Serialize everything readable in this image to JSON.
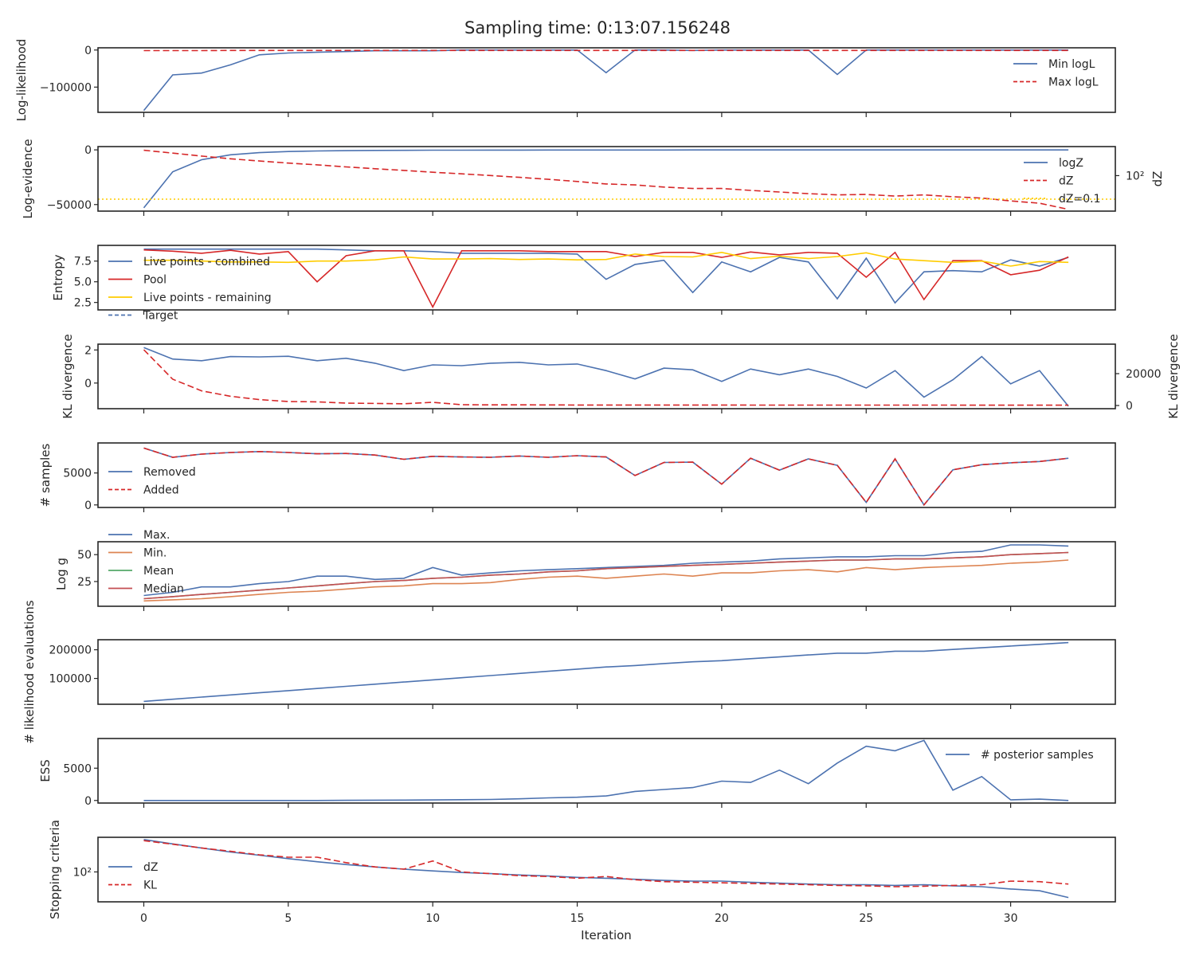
{
  "figure": {
    "title": "Sampling time: 0:13:07.156248",
    "xlabel": "Iteration"
  },
  "chart_data": [
    {
      "type": "line",
      "ylabel": "Log-likelihood",
      "x_ticks": [
        0,
        5,
        10,
        15,
        20,
        25,
        30
      ],
      "y_ticks": [
        0,
        -100000
      ],
      "y_tick_labels": [
        "0",
        "−100000"
      ],
      "ylim": [
        -168000,
        6000
      ],
      "legend_position": "upper right",
      "legend": [
        "Min logL",
        "Max logL"
      ],
      "series": [
        {
          "name": "Min logL",
          "color": "#4c72b0",
          "dash": "solid",
          "values": [
            -163000,
            -67000,
            -62000,
            -40000,
            -13000,
            -8000,
            -6000,
            -4000,
            -2000,
            -2000,
            -2000,
            0,
            0,
            0,
            0,
            0,
            -61000,
            0,
            0,
            -1000,
            0,
            0,
            0,
            0,
            -66000,
            0,
            0,
            0,
            0,
            0,
            0,
            0,
            0
          ]
        },
        {
          "name": "Max logL",
          "color": "#d62728",
          "dash": "dashed",
          "values": [
            -1500,
            -1500,
            -1500,
            -1000,
            -1000,
            -1000,
            -1000,
            -1000,
            -1000,
            -1000,
            -1000,
            -1000,
            -1000,
            -1000,
            -1000,
            -1000,
            -1000,
            -1000,
            -1000,
            -1000,
            -1000,
            -1000,
            -1000,
            -1000,
            -1000,
            -1000,
            -1000,
            -1000,
            -1000,
            -1000,
            -1000,
            -1000,
            -1000
          ]
        }
      ]
    },
    {
      "type": "line",
      "ylabel": "Log-evidence",
      "y2label": "dZ",
      "y2_scale": "log",
      "y_ticks": [
        0,
        -50000
      ],
      "y_tick_labels": [
        "0",
        "−50000"
      ],
      "y2_tick_labels": [
        "10²"
      ],
      "ylim": [
        -56000,
        3000
      ],
      "legend_position": "lower right",
      "legend": [
        "logZ",
        "dZ",
        "dZ=0.1"
      ],
      "series": [
        {
          "name": "logZ",
          "color": "#4c72b0",
          "dash": "solid",
          "values": [
            -53000,
            -20000,
            -9000,
            -4500,
            -2500,
            -1500,
            -1000,
            -700,
            -500,
            -400,
            -300,
            -250,
            -200,
            -170,
            -150,
            -130,
            -120,
            -110,
            -100,
            -90,
            -80,
            -75,
            -70,
            -65,
            -60,
            -55,
            -50,
            -48,
            -46,
            -45,
            -44,
            -43,
            -42
          ]
        },
        {
          "name": "dZ",
          "color": "#d62728",
          "dash": "dashed",
          "axis": "right",
          "values": [
            170000,
            73000,
            31000,
            14000,
            7300,
            4000,
            2350,
            1300,
            750,
            460,
            270,
            170,
            103,
            61,
            34,
            18,
            8.6,
            6.6,
            3.5,
            2.3,
            2.3,
            1.3,
            0.81,
            0.5,
            0.35,
            0.4,
            0.25,
            0.35,
            0.2,
            0.14,
            0.06,
            0.03,
            0.005
          ]
        },
        {
          "name": "dZ=0.1",
          "color": "#ffcc00",
          "dash": "dotted",
          "axis": "right",
          "values": [
            0.1
          ]
        }
      ]
    },
    {
      "type": "line",
      "ylabel": "Entropy",
      "y_ticks": [
        2.5,
        5.0,
        7.5
      ],
      "y_tick_labels": [
        "2.5",
        "5.0",
        "7.5"
      ],
      "ylim": [
        1.6,
        9.4
      ],
      "legend_position": "left",
      "legend": [
        "Live points - combined",
        "Pool",
        "Live points - remaining",
        "Target"
      ],
      "series": [
        {
          "name": "Live points - combined",
          "color": "#4c72b0",
          "dash": "solid",
          "values": [
            8.95,
            8.95,
            8.95,
            8.95,
            8.95,
            8.95,
            8.95,
            8.85,
            8.75,
            8.75,
            8.65,
            8.45,
            8.45,
            8.45,
            8.45,
            8.35,
            5.3,
            7.1,
            7.6,
            3.7,
            7.4,
            6.2,
            7.95,
            7.4,
            2.95,
            7.85,
            2.45,
            6.2,
            6.35,
            6.2,
            7.65,
            6.9,
            7.95
          ]
        },
        {
          "name": "Pool",
          "color": "#d62728",
          "dash": "solid",
          "values": [
            8.85,
            8.7,
            8.45,
            8.8,
            8.35,
            8.65,
            5.0,
            8.15,
            8.75,
            8.75,
            1.95,
            8.75,
            8.75,
            8.75,
            8.65,
            8.65,
            8.65,
            8.05,
            8.55,
            8.55,
            7.95,
            8.6,
            8.25,
            8.55,
            8.45,
            5.55,
            8.55,
            2.85,
            7.55,
            7.55,
            5.85,
            6.4,
            8.0
          ]
        },
        {
          "name": "Live points - remaining",
          "color": "#ffcc00",
          "dash": "solid",
          "values": [
            7.6,
            7.6,
            7.5,
            7.4,
            7.4,
            7.35,
            7.5,
            7.5,
            7.65,
            8.0,
            7.75,
            7.75,
            7.8,
            7.7,
            7.75,
            7.65,
            7.7,
            8.35,
            8.05,
            8.0,
            8.55,
            7.8,
            8.1,
            7.8,
            8.05,
            8.5,
            7.75,
            7.55,
            7.35,
            7.5,
            6.9,
            7.45,
            7.35
          ]
        }
      ]
    },
    {
      "type": "line",
      "ylabel": "KL divergence",
      "y2label": "KL divergence",
      "y_ticks": [
        0,
        2
      ],
      "y_tick_labels": [
        "0",
        "2"
      ],
      "y2_ticks": [
        0,
        20000
      ],
      "y2_tick_labels": [
        "0",
        "20000"
      ],
      "ylim": [
        -1.55,
        2.35
      ],
      "y2lim": [
        -2000,
        38500
      ],
      "series": [
        {
          "name": "KL divergence",
          "color": "#4c72b0",
          "dash": "solid",
          "values": [
            2.15,
            1.45,
            1.35,
            1.6,
            1.58,
            1.62,
            1.35,
            1.5,
            1.2,
            0.75,
            1.1,
            1.05,
            1.2,
            1.25,
            1.1,
            1.15,
            0.75,
            0.25,
            0.9,
            0.8,
            0.1,
            0.85,
            0.5,
            0.85,
            0.4,
            -0.3,
            0.75,
            -0.85,
            0.2,
            1.6,
            -0.05,
            0.75,
            -1.4
          ]
        },
        {
          "name": "KL divergence (right)",
          "color": "#d62728",
          "dash": "dashed",
          "axis": "right",
          "values": [
            35000,
            16500,
            9200,
            5800,
            3700,
            2500,
            2300,
            1500,
            1300,
            1100,
            2000,
            500,
            400,
            400,
            350,
            320,
            300,
            300,
            300,
            280,
            280,
            260,
            260,
            250,
            250,
            240,
            240,
            230,
            230,
            220,
            220,
            210,
            200
          ]
        }
      ]
    },
    {
      "type": "line",
      "ylabel": "# samples",
      "y_ticks": [
        0,
        5000
      ],
      "y_tick_labels": [
        "0",
        "5000"
      ],
      "ylim": [
        -400,
        9700
      ],
      "legend_position": "left",
      "legend": [
        "Removed",
        "Added"
      ],
      "series": [
        {
          "name": "Removed",
          "color": "#4c72b0",
          "dash": "solid",
          "values": [
            8900,
            7450,
            7950,
            8200,
            8350,
            8200,
            8000,
            8050,
            7800,
            7150,
            7600,
            7500,
            7450,
            7650,
            7450,
            7700,
            7500,
            4600,
            6650,
            6700,
            3250,
            7300,
            5450,
            7200,
            6200,
            400,
            7200,
            0,
            5500,
            6300,
            6600,
            6800,
            7300
          ]
        },
        {
          "name": "Added",
          "color": "#d62728",
          "dash": "dashed",
          "values": [
            8900,
            7450,
            7950,
            8200,
            8350,
            8200,
            8000,
            8050,
            7800,
            7150,
            7600,
            7500,
            7450,
            7650,
            7450,
            7700,
            7500,
            4600,
            6650,
            6700,
            3250,
            7300,
            5450,
            7200,
            6200,
            400,
            7200,
            0,
            5500,
            6300,
            6600,
            6800,
            7300
          ]
        }
      ]
    },
    {
      "type": "line",
      "ylabel": "Log g",
      "y_ticks": [
        25,
        50
      ],
      "y_tick_labels": [
        "25",
        "50"
      ],
      "ylim": [
        2,
        62
      ],
      "legend_position": "upper left",
      "legend": [
        "Max.",
        "Min.",
        "Mean",
        "Median"
      ],
      "series": [
        {
          "name": "Max.",
          "color": "#4c72b0",
          "dash": "solid",
          "values": [
            12,
            15,
            20,
            20,
            23,
            25,
            30,
            30,
            27,
            28,
            38,
            31,
            33,
            35,
            36,
            37,
            38,
            39,
            40,
            42,
            43,
            44,
            46,
            47,
            48,
            48,
            49,
            49,
            52,
            53,
            59,
            59,
            58
          ]
        },
        {
          "name": "Min.",
          "color": "#dd8452",
          "dash": "solid",
          "values": [
            7,
            8,
            9,
            11,
            13,
            15,
            16,
            18,
            20,
            21,
            23,
            23,
            24,
            27,
            29,
            30,
            28,
            30,
            32,
            30,
            33,
            33,
            35,
            36,
            34,
            38,
            36,
            38,
            39,
            40,
            42,
            43,
            45
          ]
        },
        {
          "name": "Mean",
          "color": "#55a868",
          "dash": "solid",
          "values": [
            9,
            11,
            13,
            15,
            17,
            19,
            21,
            23,
            25,
            26,
            28,
            29,
            31,
            32,
            34,
            35,
            37,
            38,
            39,
            40,
            41,
            42,
            43,
            44,
            45,
            45,
            46,
            46,
            47,
            48,
            50,
            51,
            52
          ]
        },
        {
          "name": "Median",
          "color": "#c44e52",
          "dash": "solid",
          "values": [
            9,
            11,
            13,
            15,
            17,
            19,
            21,
            23,
            25,
            26,
            28,
            29,
            31,
            32,
            34,
            35,
            37,
            38,
            39,
            40,
            41,
            42,
            43,
            44,
            45,
            45,
            46,
            46,
            47,
            48,
            50,
            51,
            52
          ]
        }
      ]
    },
    {
      "type": "line",
      "ylabel": "# likelihood evaluations",
      "y_ticks": [
        100000,
        200000
      ],
      "y_tick_labels": [
        "100000",
        "200000"
      ],
      "ylim": [
        10000,
        235000
      ],
      "series": [
        {
          "name": "# likelihood evaluations",
          "color": "#4c72b0",
          "dash": "solid",
          "values": [
            20000,
            27500,
            35000,
            42500,
            50000,
            57500,
            65000,
            72500,
            80000,
            87500,
            95000,
            102500,
            110000,
            117500,
            125000,
            132500,
            140000,
            145000,
            152000,
            158000,
            162000,
            169000,
            175000,
            182000,
            188000,
            188000,
            195000,
            195000,
            201000,
            207000,
            213000,
            219000,
            225000
          ]
        }
      ]
    },
    {
      "type": "line",
      "ylabel": "ESS",
      "y_ticks": [
        0,
        5000
      ],
      "y_tick_labels": [
        "0",
        "5000"
      ],
      "ylim": [
        -400,
        9600
      ],
      "legend_position": "upper right",
      "legend": [
        "# posterior samples"
      ],
      "series": [
        {
          "name": "# posterior samples",
          "color": "#4c72b0",
          "dash": "solid",
          "values": [
            0,
            0,
            0,
            0,
            0,
            0,
            0,
            20,
            40,
            60,
            80,
            120,
            150,
            250,
            400,
            500,
            700,
            1400,
            1700,
            2000,
            3000,
            2800,
            4700,
            2600,
            5800,
            8400,
            7700,
            9300,
            1600,
            3700,
            100,
            200,
            0
          ]
        }
      ]
    },
    {
      "type": "line",
      "ylabel": "Stopping criteria",
      "y_scale": "log",
      "y_tick_labels": [
        "10²"
      ],
      "legend_position": "left",
      "legend": [
        "dZ",
        "KL"
      ],
      "series": [
        {
          "name": "dZ",
          "color": "#4c72b0",
          "dash": "solid",
          "values": [
            2100,
            1400,
            950,
            650,
            480,
            350,
            260,
            200,
            160,
            130,
            110,
            95,
            85,
            75,
            68,
            60,
            55,
            50,
            45,
            42,
            42,
            38,
            35,
            32,
            30,
            30,
            28,
            30,
            27,
            25,
            20,
            17,
            9
          ]
        },
        {
          "name": "KL",
          "color": "#d62728",
          "dash": "dashed",
          "values": [
            1900,
            1350,
            950,
            700,
            500,
            400,
            400,
            240,
            160,
            130,
            280,
            100,
            85,
            70,
            65,
            55,
            65,
            48,
            40,
            38,
            36,
            34,
            32,
            30,
            28,
            27,
            25,
            26,
            28,
            30,
            42,
            40,
            32
          ]
        }
      ]
    }
  ]
}
